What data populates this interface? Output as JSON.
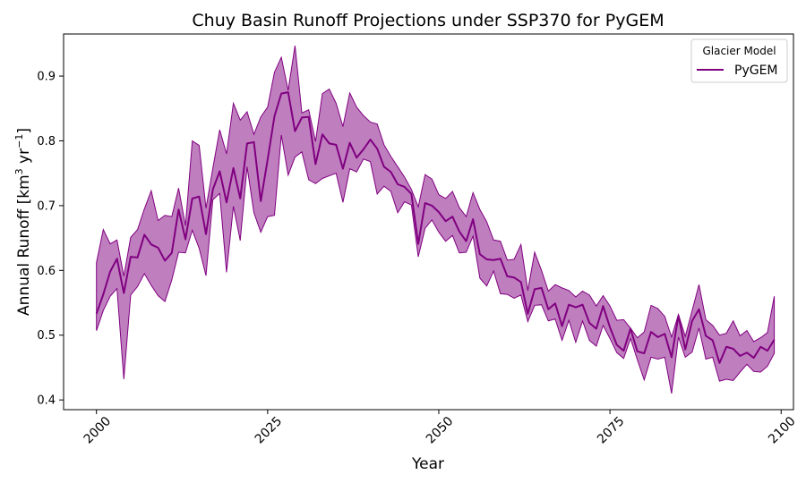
{
  "chart_data": {
    "type": "line",
    "title": "Chuy Basin Runoff Projections under SSP370 for PyGEM",
    "xlabel": "Year",
    "ylabel_main": "Annual Runoff [km",
    "ylabel_sup1": "3",
    "ylabel_mid": " yr",
    "ylabel_sup2": "−1",
    "ylabel_end": "]",
    "xlim": [
      1995.2,
      2101.8
    ],
    "ylim": [
      0.385,
      0.965
    ],
    "xticks": [
      2000,
      2025,
      2050,
      2075,
      2100
    ],
    "yticks": [
      0.4,
      0.5,
      0.6,
      0.7,
      0.8,
      0.9
    ],
    "ytick_labels": [
      "0.4",
      "0.5",
      "0.6",
      "0.7",
      "0.8",
      "0.9"
    ],
    "legend": {
      "title": "Glacier Model",
      "position": "top-right"
    },
    "series": [
      {
        "name": "PyGEM",
        "color": "#800080",
        "band_color": "#800080",
        "x_start": 2000,
        "x_end": 2099,
        "mean": [
          0.533,
          0.563,
          0.598,
          0.618,
          0.565,
          0.621,
          0.62,
          0.655,
          0.64,
          0.635,
          0.615,
          0.627,
          0.694,
          0.648,
          0.711,
          0.714,
          0.656,
          0.725,
          0.753,
          0.705,
          0.758,
          0.711,
          0.796,
          0.798,
          0.707,
          0.771,
          0.838,
          0.873,
          0.875,
          0.815,
          0.836,
          0.837,
          0.764,
          0.81,
          0.796,
          0.794,
          0.757,
          0.797,
          0.774,
          0.787,
          0.802,
          0.788,
          0.76,
          0.752,
          0.733,
          0.729,
          0.718,
          0.641,
          0.704,
          0.7,
          0.69,
          0.676,
          0.683,
          0.66,
          0.645,
          0.679,
          0.625,
          0.617,
          0.616,
          0.618,
          0.591,
          0.589,
          0.582,
          0.533,
          0.571,
          0.573,
          0.54,
          0.549,
          0.514,
          0.547,
          0.543,
          0.547,
          0.519,
          0.51,
          0.545,
          0.512,
          0.485,
          0.476,
          0.51,
          0.475,
          0.472,
          0.505,
          0.497,
          0.502,
          0.466,
          0.53,
          0.478,
          0.522,
          0.54,
          0.499,
          0.492,
          0.457,
          0.482,
          0.479,
          0.468,
          0.473,
          0.465,
          0.482,
          0.476,
          0.493
        ],
        "upper": [
          0.612,
          0.663,
          0.641,
          0.647,
          0.591,
          0.651,
          0.663,
          0.695,
          0.723,
          0.677,
          0.685,
          0.683,
          0.727,
          0.669,
          0.8,
          0.793,
          0.696,
          0.758,
          0.817,
          0.78,
          0.858,
          0.832,
          0.845,
          0.81,
          0.837,
          0.852,
          0.906,
          0.929,
          0.878,
          0.947,
          0.843,
          0.848,
          0.799,
          0.873,
          0.88,
          0.858,
          0.822,
          0.874,
          0.852,
          0.839,
          0.829,
          0.826,
          0.794,
          0.776,
          0.76,
          0.744,
          0.725,
          0.698,
          0.748,
          0.741,
          0.717,
          0.711,
          0.722,
          0.697,
          0.683,
          0.72,
          0.694,
          0.675,
          0.647,
          0.645,
          0.616,
          0.617,
          0.64,
          0.569,
          0.628,
          0.6,
          0.568,
          0.578,
          0.573,
          0.569,
          0.559,
          0.568,
          0.562,
          0.545,
          0.561,
          0.545,
          0.523,
          0.524,
          0.511,
          0.496,
          0.505,
          0.546,
          0.541,
          0.529,
          0.497,
          0.532,
          0.498,
          0.538,
          0.578,
          0.524,
          0.515,
          0.5,
          0.503,
          0.522,
          0.499,
          0.507,
          0.49,
          0.496,
          0.504,
          0.56
        ],
        "lower": [
          0.507,
          0.538,
          0.56,
          0.572,
          0.432,
          0.562,
          0.575,
          0.595,
          0.577,
          0.561,
          0.552,
          0.585,
          0.628,
          0.627,
          0.662,
          0.634,
          0.592,
          0.709,
          0.719,
          0.597,
          0.699,
          0.646,
          0.76,
          0.689,
          0.659,
          0.683,
          0.685,
          0.809,
          0.747,
          0.775,
          0.783,
          0.74,
          0.734,
          0.742,
          0.746,
          0.75,
          0.705,
          0.757,
          0.752,
          0.772,
          0.768,
          0.718,
          0.73,
          0.722,
          0.689,
          0.706,
          0.701,
          0.621,
          0.665,
          0.678,
          0.659,
          0.645,
          0.654,
          0.627,
          0.628,
          0.653,
          0.588,
          0.576,
          0.599,
          0.564,
          0.563,
          0.557,
          0.562,
          0.521,
          0.546,
          0.547,
          0.522,
          0.525,
          0.492,
          0.523,
          0.489,
          0.522,
          0.492,
          0.483,
          0.515,
          0.495,
          0.473,
          0.464,
          0.495,
          0.462,
          0.431,
          0.466,
          0.463,
          0.466,
          0.41,
          0.497,
          0.466,
          0.474,
          0.511,
          0.463,
          0.466,
          0.429,
          0.432,
          0.43,
          0.443,
          0.455,
          0.444,
          0.443,
          0.452,
          0.472
        ]
      }
    ]
  }
}
